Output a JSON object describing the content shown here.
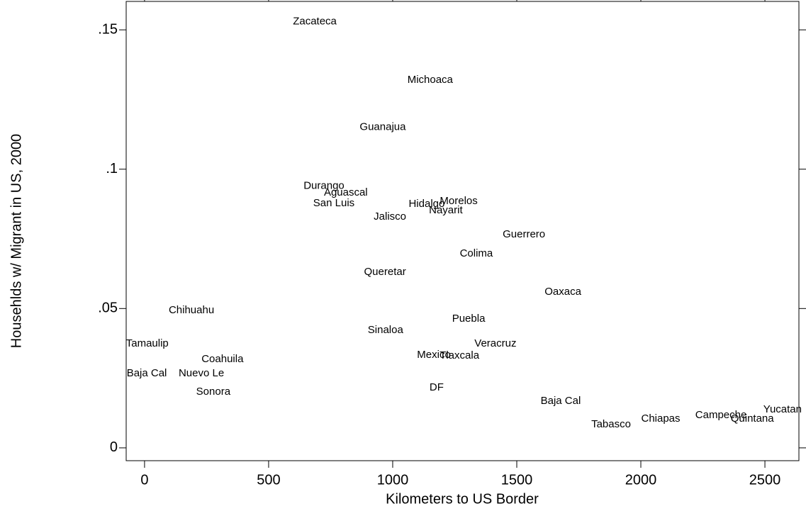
{
  "chart_data": {
    "type": "scatter",
    "x_label": "Kilometers to US Border",
    "y_label": "Househlds w/ Migrant in US, 2000",
    "labels": [
      "Zacateca",
      "Michoaca",
      "Guanajua",
      "Durango",
      "Aguascal",
      "San Luis",
      "Hidalgo",
      "Morelos",
      "Nayarit",
      "Jalisco",
      "Guerrero",
      "Colima",
      "Queretar",
      "Oaxaca",
      "Chihuahu",
      "Puebla",
      "Sinaloa",
      "Tamaulip",
      "Veracruz",
      "Coahuila",
      "Mexico",
      "Tlaxcala",
      "Baja Cal",
      "Nuevo Le",
      "Sonora",
      "DF",
      "Baja Cal",
      "Tabasco",
      "Chiapas",
      "Campeche",
      "Quintana",
      "Yucatan"
    ],
    "x": [
      686,
      1151,
      960,
      723,
      811,
      763,
      1137,
      1266,
      1214,
      989,
      1529,
      1337,
      969,
      1686,
      189,
      1306,
      971,
      11,
      1414,
      314,
      1166,
      1269,
      9,
      229,
      277,
      1177,
      1677,
      1880,
      2080,
      2323,
      2449,
      2571
    ],
    "y": [
      0.153,
      0.132,
      0.115,
      0.094,
      0.0915,
      0.0877,
      0.0875,
      0.0885,
      0.0852,
      0.0829,
      0.0765,
      0.0697,
      0.0631,
      0.0559,
      0.0493,
      0.0463,
      0.0422,
      0.0374,
      0.0374,
      0.0318,
      0.0333,
      0.033,
      0.0267,
      0.0267,
      0.0201,
      0.0216,
      0.0168,
      0.0084,
      0.0104,
      0.0117,
      0.0104,
      0.0137
    ],
    "xlim": [
      -74,
      2637
    ],
    "ylim": [
      -0.0046,
      0.1602
    ],
    "xticks": [
      0,
      500,
      1000,
      1500,
      2000,
      2500
    ],
    "yticks": [
      0,
      {
        "value": 0.05,
        "label": ".05"
      },
      {
        "value": 0.1,
        "label": ".1"
      },
      {
        "value": 0.15,
        "label": ".15"
      }
    ]
  }
}
